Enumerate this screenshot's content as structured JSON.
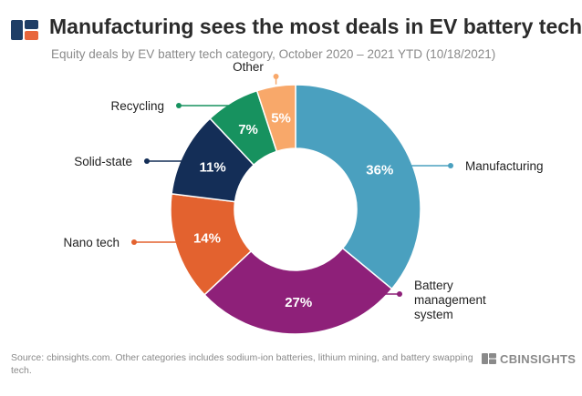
{
  "header": {
    "title": "Manufacturing sees the most deals in EV battery tech",
    "subtitle": "Equity deals by EV battery tech category, October 2020 – 2021 YTD (10/18/2021)"
  },
  "footer": {
    "source": "Source: cbinsights.com. Other categories includes sodium-ion batteries, lithium mining, and battery swapping tech.",
    "brand": "CBINSIGHTS"
  },
  "colors": {
    "logo_blue": "#1f3e66",
    "logo_orange": "#e8663c",
    "brand_gray": "#8a8a8a"
  },
  "chart_data": {
    "type": "pie",
    "donut": true,
    "categories": [
      "Manufacturing",
      "Battery management system",
      "Nano tech",
      "Solid-state",
      "Recycling",
      "Other"
    ],
    "values": [
      36,
      27,
      14,
      11,
      7,
      5
    ],
    "value_labels": [
      "36%",
      "27%",
      "14%",
      "11%",
      "7%",
      "5%"
    ],
    "label_lines": [
      [
        "Manufacturing"
      ],
      [
        "Battery",
        "management",
        "system"
      ],
      [
        "Nano tech"
      ],
      [
        "Solid-state"
      ],
      [
        "Recycling"
      ],
      [
        "Other"
      ]
    ],
    "colors": [
      "#4aa0bf",
      "#8e2079",
      "#e3622f",
      "#142e57",
      "#17925f",
      "#f8a86a"
    ],
    "unit": "%",
    "start_angle_deg": 0,
    "direction": "clockwise"
  }
}
